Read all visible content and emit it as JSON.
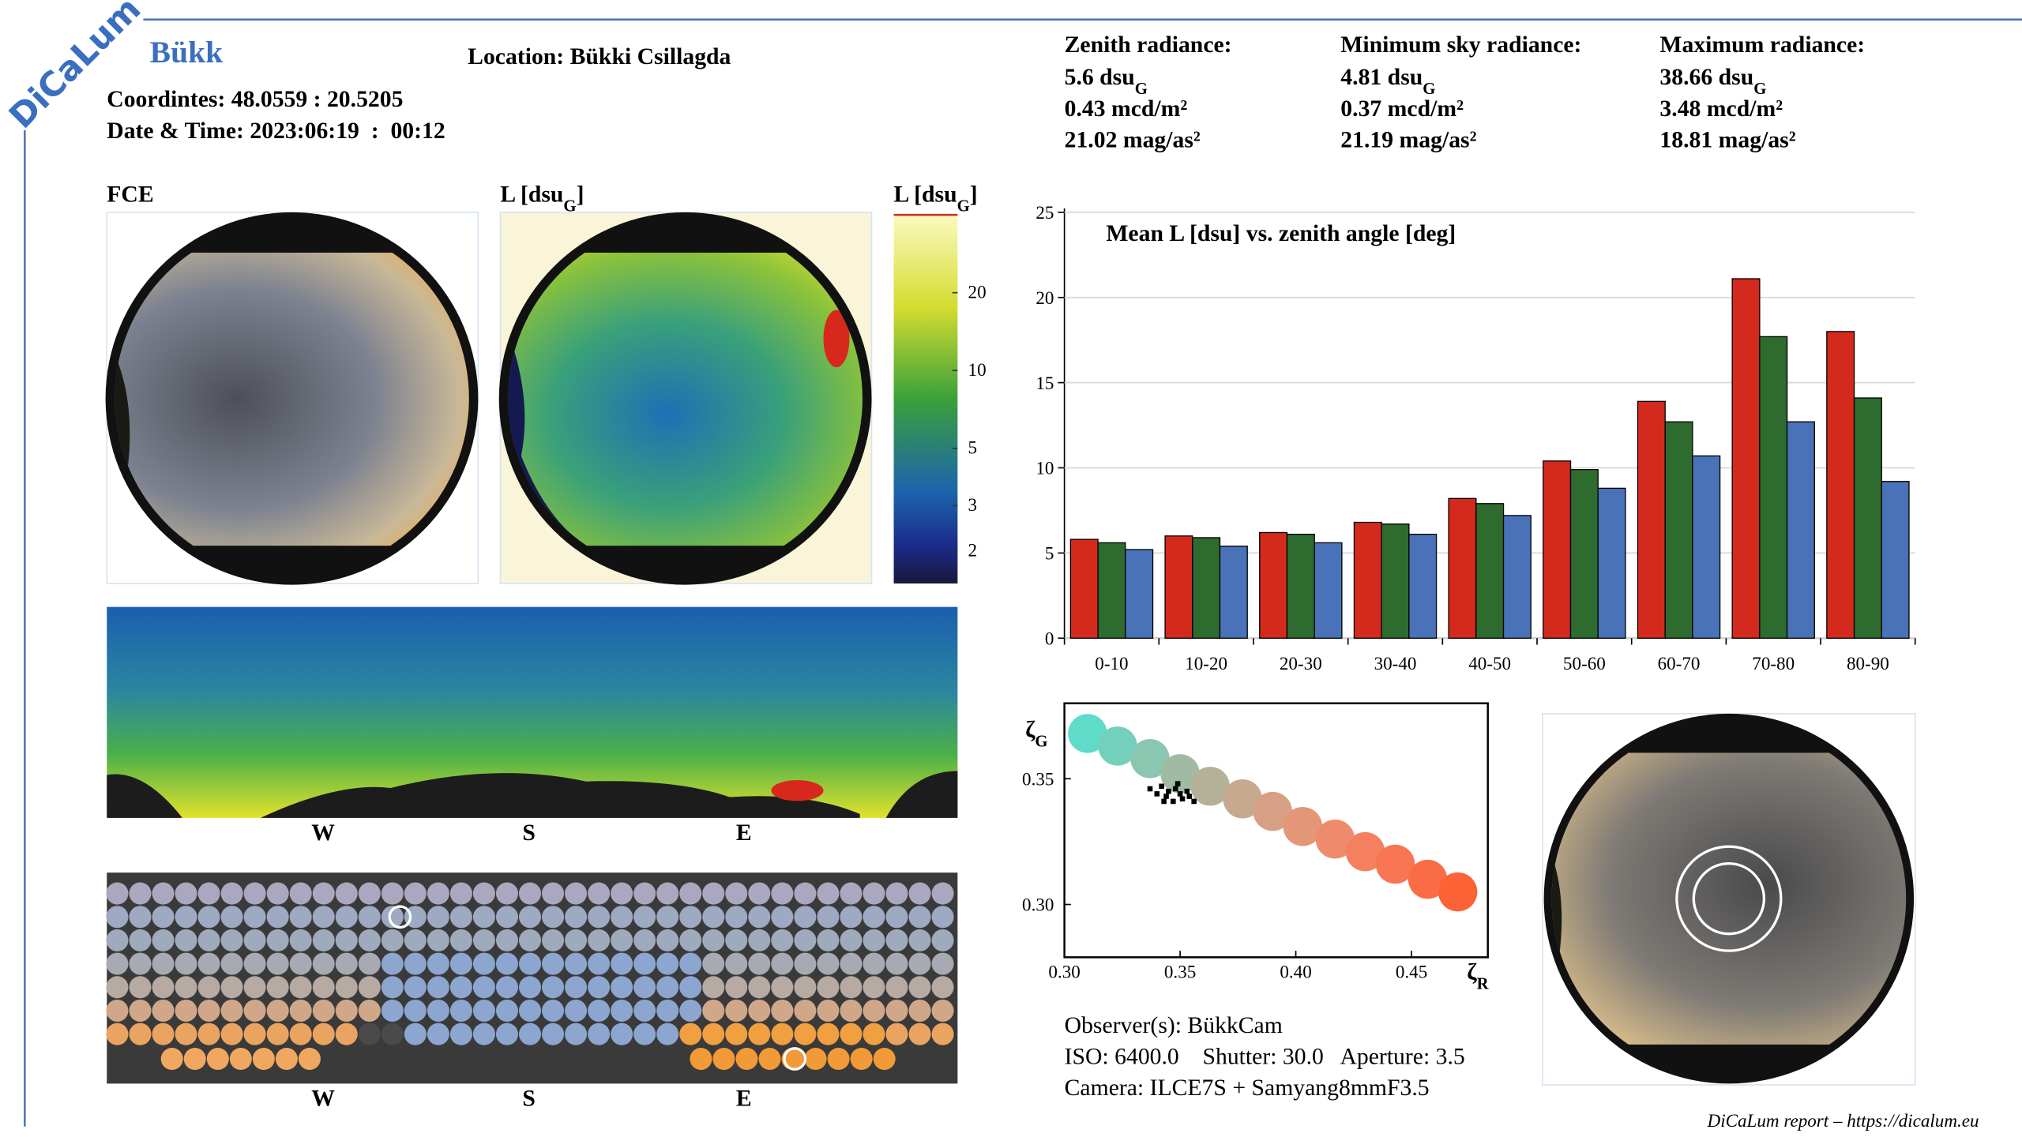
{
  "header": {
    "logo": "DiCaLum",
    "site": "Bükk",
    "location": "Location: Bükki Csillagda",
    "coordinates": "Coordintes: 48.0559 : 20.5205",
    "datetime": "Date & Time: 2023:06:19  :  00:12"
  },
  "radiance": [
    {
      "title": "Zenith radiance:",
      "lines": [
        {
          "text": "5.6 dsu",
          "sub": "G"
        },
        {
          "text": "0.43 mcd/m²"
        },
        {
          "text": "21.02 mag/as²"
        }
      ]
    },
    {
      "title": "Minimum sky radiance:",
      "lines": [
        {
          "text": "4.81 dsu",
          "sub": "G"
        },
        {
          "text": "0.37 mcd/m²"
        },
        {
          "text": "21.19 mag/as²"
        }
      ]
    },
    {
      "title": "Maximum radiance:",
      "lines": [
        {
          "text": "38.66 dsu",
          "sub": "G"
        },
        {
          "text": "3.48 mcd/m²"
        },
        {
          "text": "18.81 mag/as²"
        }
      ]
    }
  ],
  "panels": {
    "fce": "FCE",
    "lmap": {
      "text": "L [dsu",
      "sub": "G",
      "tail": "]"
    },
    "panorama_labels": [
      "W",
      "S",
      "E"
    ],
    "dots_labels": [
      "W",
      "S",
      "E"
    ]
  },
  "colorbar": {
    "title": {
      "text": "L [dsu",
      "sub": "G",
      "tail": "]"
    },
    "lim": [
      1.5,
      40
    ],
    "ticks": [
      2,
      3,
      5,
      10,
      20
    ],
    "log": true
  },
  "chart_data": [
    {
      "type": "bar",
      "title": "Mean L [dsu] vs. zenith angle [deg]",
      "categories": [
        "0-10",
        "10-20",
        "20-30",
        "30-40",
        "40-50",
        "50-60",
        "60-70",
        "70-80",
        "80-90"
      ],
      "series": [
        {
          "color": "#d42a1e",
          "values": [
            5.8,
            6.0,
            6.2,
            6.8,
            8.2,
            10.4,
            13.9,
            21.1,
            18.0
          ]
        },
        {
          "color": "#2e6b2e",
          "values": [
            5.6,
            5.9,
            6.1,
            6.7,
            7.9,
            9.9,
            12.7,
            17.7,
            14.1
          ]
        },
        {
          "color": "#4a72b8",
          "values": [
            5.2,
            5.4,
            5.6,
            6.1,
            7.2,
            8.8,
            10.7,
            12.7,
            9.2
          ]
        }
      ],
      "ylim": [
        0,
        25
      ],
      "yticks": [
        0,
        5,
        10,
        15,
        20,
        25
      ],
      "grid": true
    },
    {
      "type": "scatter",
      "x_label": {
        "text": "ζ",
        "sub": "R"
      },
      "y_label": {
        "text": "ζ",
        "sub": "G"
      },
      "xlim": [
        0.3,
        0.483
      ],
      "ylim": [
        0.279,
        0.38
      ],
      "xticks": [
        {
          "value": 0.3,
          "label": "0.30"
        },
        0.35,
        {
          "value": 0.4,
          "label": "0.40"
        },
        0.45
      ],
      "yticks": [
        {
          "value": 0.3,
          "label": "0.30"
        },
        0.35
      ],
      "series": [
        {
          "x": [
            0.31,
            0.323,
            0.337,
            0.35,
            0.363,
            0.377,
            0.39,
            0.403,
            0.417,
            0.43,
            0.443,
            0.457,
            0.47
          ],
          "values": [
            0.368,
            0.363,
            0.358,
            0.352,
            0.347,
            0.342,
            0.337,
            0.331,
            0.326,
            0.321,
            0.316,
            0.31,
            0.305
          ],
          "colors": [
            "#5edbc9",
            "#73d0bd",
            "#8ac6b0",
            "#a1bba3",
            "#b5b196",
            "#c6a98f",
            "#d7a084",
            "#e49679",
            "#ee8b6c",
            "#f4805f",
            "#f87653",
            "#fa6c45",
            "#fb6236"
          ]
        },
        {
          "x": [
            0.337,
            0.34,
            0.342,
            0.344,
            0.345,
            0.347,
            0.348,
            0.35,
            0.351,
            0.353,
            0.354,
            0.356,
            0.343,
            0.349
          ],
          "values": [
            0.346,
            0.344,
            0.347,
            0.343,
            0.345,
            0.341,
            0.346,
            0.344,
            0.342,
            0.345,
            0.343,
            0.341,
            0.341,
            0.348
          ],
          "color": "#000000"
        }
      ]
    }
  ],
  "observer": {
    "observers": "Observer(s): BükkCam",
    "settings": "ISO: 6400.0    Shutter: 30.0   Aperture: 3.5",
    "camera": "Camera: ILCE7S + Samyang8mmF3.5"
  },
  "footer": "DiCaLum report – https://dicalum.eu"
}
